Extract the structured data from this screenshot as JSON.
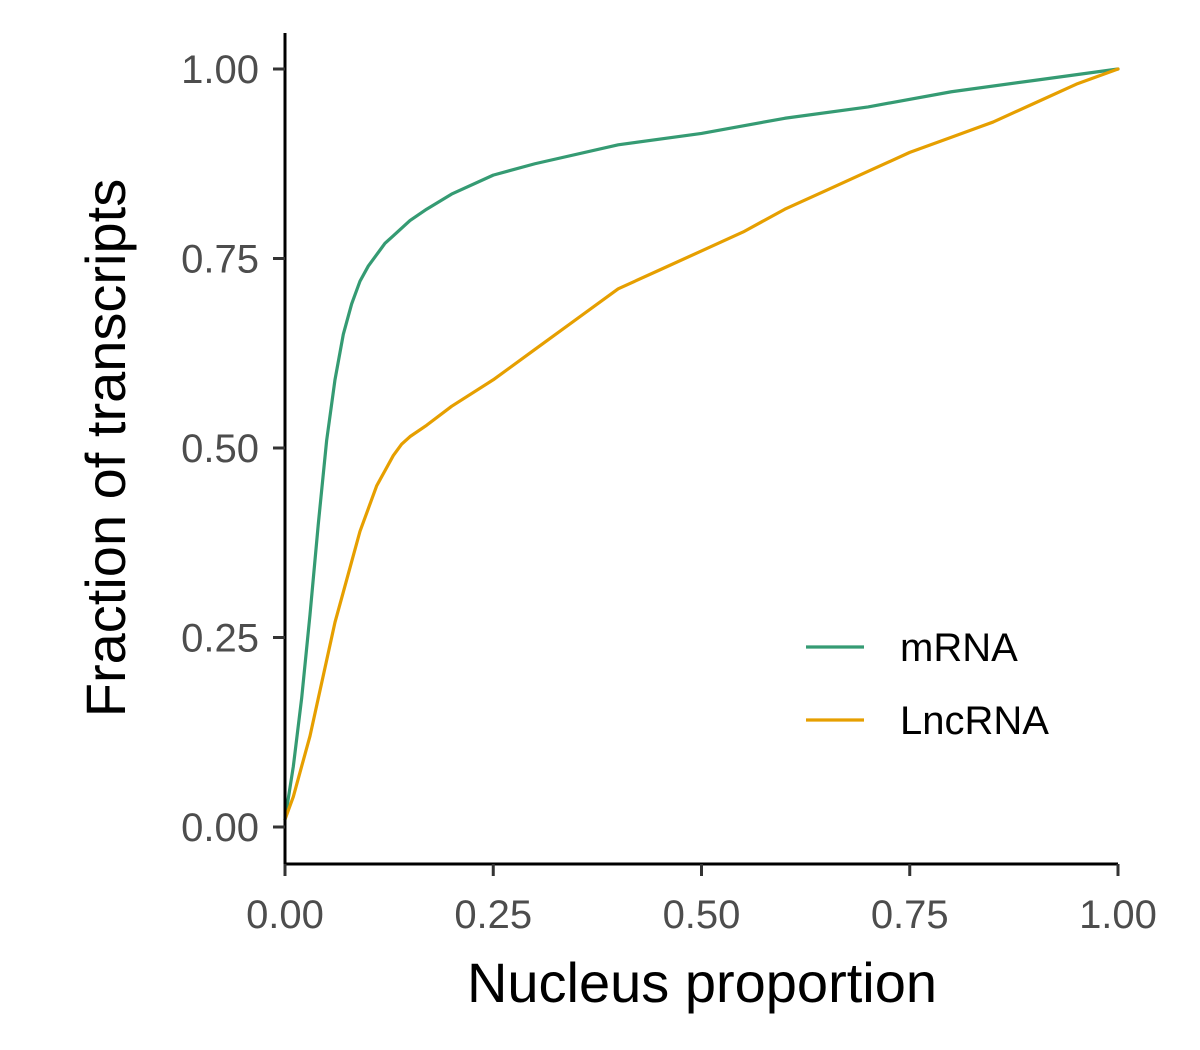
{
  "chart_data": {
    "type": "line",
    "title": "",
    "xlabel": "Nucleus proportion",
    "ylabel": "Fraction of transcripts",
    "xlim": [
      0,
      1
    ],
    "ylim": [
      0,
      1
    ],
    "x_ticks": [
      "0.00",
      "0.25",
      "0.50",
      "0.75",
      "1.00"
    ],
    "y_ticks": [
      "0.00",
      "0.25",
      "0.50",
      "0.75",
      "1.00"
    ],
    "grid": false,
    "legend_position": "bottom-right",
    "series": [
      {
        "name": "mRNA",
        "color": "#359b73",
        "x": [
          0,
          0.01,
          0.02,
          0.03,
          0.04,
          0.05,
          0.06,
          0.07,
          0.08,
          0.09,
          0.1,
          0.11,
          0.12,
          0.13,
          0.14,
          0.15,
          0.17,
          0.2,
          0.25,
          0.3,
          0.4,
          0.5,
          0.6,
          0.7,
          0.8,
          0.9,
          1.0
        ],
        "y": [
          0.01,
          0.08,
          0.17,
          0.28,
          0.4,
          0.51,
          0.59,
          0.65,
          0.69,
          0.72,
          0.74,
          0.755,
          0.77,
          0.78,
          0.79,
          0.8,
          0.815,
          0.835,
          0.86,
          0.875,
          0.9,
          0.915,
          0.935,
          0.95,
          0.97,
          0.985,
          1.0
        ]
      },
      {
        "name": "LncRNA",
        "color": "#e69f00",
        "x": [
          0,
          0.01,
          0.02,
          0.03,
          0.04,
          0.05,
          0.06,
          0.07,
          0.08,
          0.09,
          0.1,
          0.11,
          0.12,
          0.13,
          0.14,
          0.15,
          0.17,
          0.2,
          0.25,
          0.3,
          0.35,
          0.4,
          0.45,
          0.5,
          0.55,
          0.6,
          0.65,
          0.7,
          0.75,
          0.8,
          0.85,
          0.9,
          0.95,
          1.0
        ],
        "y": [
          0.01,
          0.04,
          0.08,
          0.12,
          0.17,
          0.22,
          0.27,
          0.31,
          0.35,
          0.39,
          0.42,
          0.45,
          0.47,
          0.49,
          0.505,
          0.515,
          0.53,
          0.555,
          0.59,
          0.63,
          0.67,
          0.71,
          0.735,
          0.76,
          0.785,
          0.815,
          0.84,
          0.865,
          0.89,
          0.91,
          0.93,
          0.955,
          0.98,
          1.0
        ]
      }
    ]
  }
}
